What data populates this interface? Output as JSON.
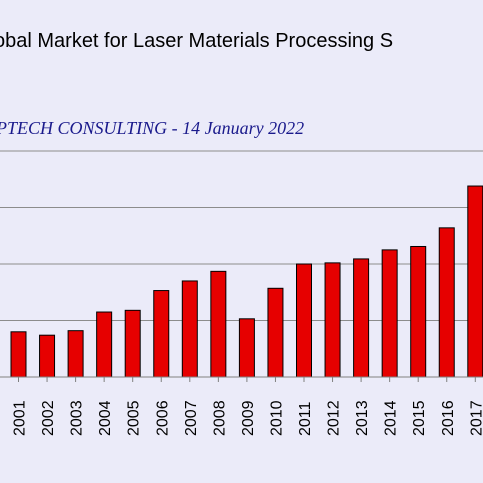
{
  "chart_data": {
    "type": "bar",
    "title": "obal Market for Laser Materials Processing S",
    "subtitle": "PTECH CONSULTING - 14 January 2022",
    "categories": [
      "2001",
      "2002",
      "2003",
      "2004",
      "2005",
      "2006",
      "2007",
      "2008",
      "2009",
      "2010",
      "2011",
      "2012",
      "2013",
      "2014",
      "2015",
      "2016",
      "2017"
    ],
    "values": [
      0.8,
      0.74,
      0.82,
      1.15,
      1.18,
      1.53,
      1.7,
      1.87,
      1.03,
      1.57,
      2.0,
      2.02,
      2.09,
      2.25,
      2.31,
      2.64,
      3.38
    ],
    "ylim": [
      0,
      4.4
    ],
    "grid": true,
    "bar_color": "#e60000",
    "bar_edge": "#000000"
  }
}
